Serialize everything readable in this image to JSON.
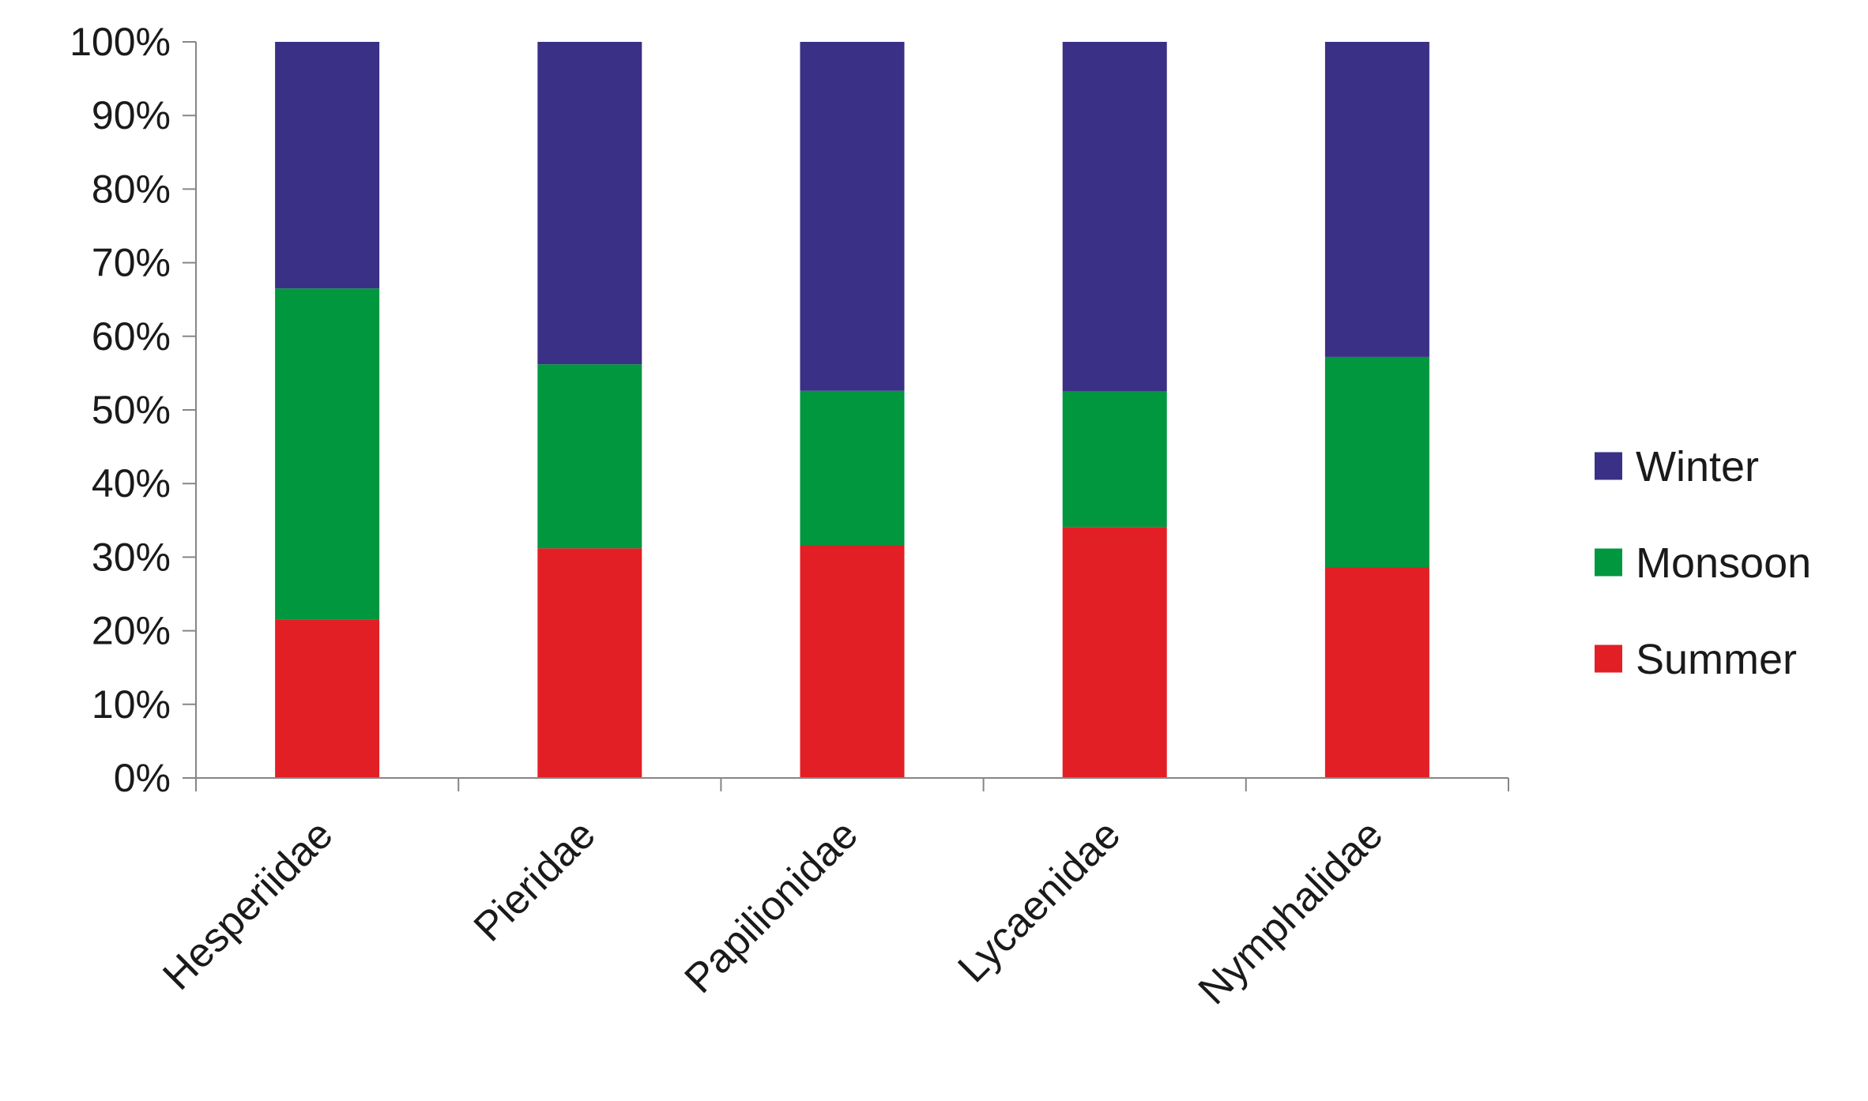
{
  "chart_data": {
    "type": "bar",
    "stacked": true,
    "percent_stacked": true,
    "categories": [
      "Hesperiidae",
      "Pieridae",
      "Papilionidae",
      "Lycaenidae",
      "Nymphalidae"
    ],
    "series": [
      {
        "name": "Summer",
        "color": "#e31f26",
        "values": [
          21.5,
          31.2,
          31.6,
          34.1,
          28.6
        ]
      },
      {
        "name": "Monsoon",
        "color": "#00973f",
        "values": [
          45,
          25,
          21,
          18.4,
          28.6
        ]
      },
      {
        "name": "Winter",
        "color": "#3a3085",
        "values": [
          33.5,
          43.8,
          47.4,
          47.5,
          42.8
        ]
      }
    ],
    "y_ticks": [
      "0%",
      "10%",
      "20%",
      "30%",
      "40%",
      "50%",
      "60%",
      "70%",
      "80%",
      "90%",
      "100%"
    ],
    "ylim": [
      0,
      100
    ],
    "legend": {
      "position": "right",
      "order": [
        "Winter",
        "Monsoon",
        "Summer"
      ]
    },
    "grid": false,
    "axis_color": "#868686"
  }
}
